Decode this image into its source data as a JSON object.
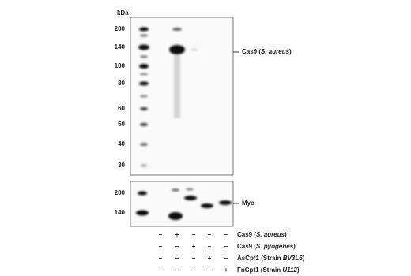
{
  "upper_panel": {
    "unit_label": "kDa",
    "markers": [
      200,
      140,
      100,
      80,
      60,
      50,
      40,
      30
    ],
    "band_label": [
      "Cas9 (",
      "S. aureus",
      ")"
    ]
  },
  "lower_panel": {
    "markers": [
      200,
      140
    ],
    "band_label": "Myc"
  },
  "lanes": {
    "rows": [
      {
        "label": [
          "Cas9 (",
          "S. aureus",
          ")"
        ],
        "signs": [
          "–",
          "+",
          "–",
          "–",
          "–"
        ]
      },
      {
        "label": [
          "Cas9 (",
          "S. pyogenes",
          ")"
        ],
        "signs": [
          "–",
          "–",
          "+",
          "–",
          "–"
        ]
      },
      {
        "label": [
          "AsCpf1 (Strain ",
          "BV3L6",
          ")"
        ],
        "signs": [
          "–",
          "–",
          "–",
          "+",
          "–"
        ]
      },
      {
        "label": [
          "FnCpf1 (Strain ",
          "U112",
          ")"
        ],
        "signs": [
          "–",
          "–",
          "–",
          "–",
          "+"
        ]
      }
    ]
  }
}
